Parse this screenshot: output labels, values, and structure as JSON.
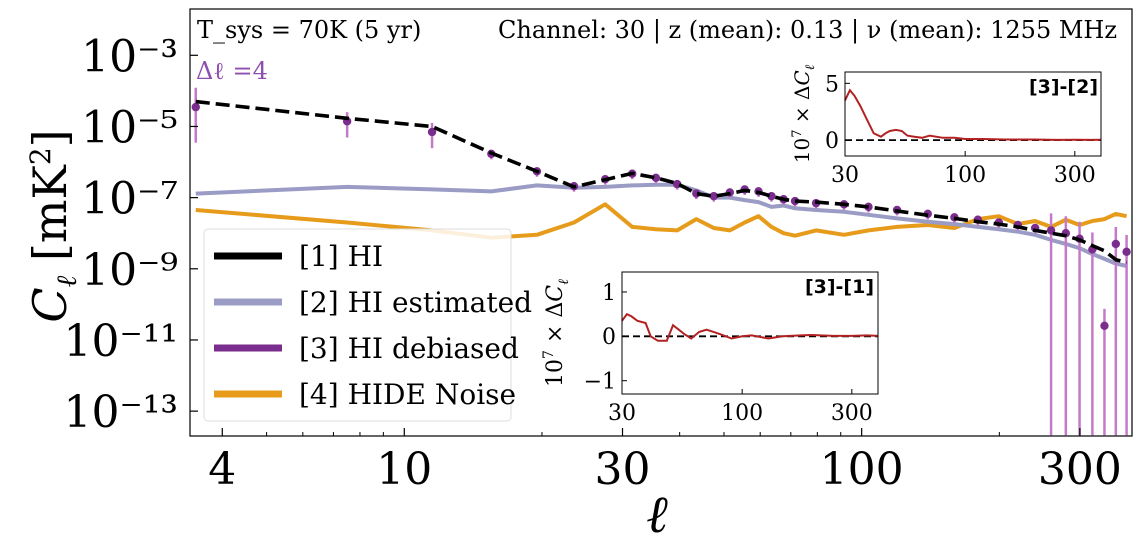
{
  "chart_data": [
    {
      "type": "line",
      "role": "main",
      "xscale": "log",
      "yscale": "log",
      "xlim": [
        3.4,
        390
      ],
      "ylim": [
        2e-14,
        0.02
      ],
      "xlabel": "ℓ",
      "ylabel": "C_ℓ [mK²]",
      "xticks": [
        {
          "value": 4,
          "label": "4"
        },
        {
          "value": 10,
          "label": "10"
        },
        {
          "value": 30,
          "label": "30"
        },
        {
          "value": 100,
          "label": "100"
        },
        {
          "value": 300,
          "label": "300"
        }
      ],
      "yticks": [
        {
          "value": 0.001,
          "label": "10⁻³"
        },
        {
          "value": 1e-05,
          "label": "10⁻⁵"
        },
        {
          "value": 1e-07,
          "label": "10⁻⁷"
        },
        {
          "value": 1e-09,
          "label": "10⁻⁹"
        },
        {
          "value": 1e-11,
          "label": "10⁻¹¹"
        },
        {
          "value": 1e-13,
          "label": "10⁻¹³"
        }
      ],
      "annotations": {
        "left": "T_sys = 70K (5 yr)",
        "right": "Channel: 30 | z (mean): 0.13 | ν (mean): 1255 MHz",
        "delta_ell": "Δℓ =4"
      },
      "legend": {
        "placement": "lower-left",
        "entries": [
          {
            "label": "[1] HI",
            "color": "#000000"
          },
          {
            "label": "[2] HI estimated",
            "color": "#9a9cc6"
          },
          {
            "label": "[3] HI debiased",
            "color": "#7b2d8e"
          },
          {
            "label": "[4] HIDE Noise",
            "color": "#e69b1a"
          }
        ]
      },
      "series": [
        {
          "name": "[1] HI",
          "color": "#000000",
          "style": "dashed",
          "x": [
            3.5,
            7.5,
            11.5,
            15.5,
            19.5,
            23.5,
            27.5,
            31.5,
            35.5,
            39.5,
            43.5,
            47.5,
            51.5,
            55.5,
            59.5,
            63.5,
            67.5,
            71.5,
            79.5,
            91.5,
            103.5,
            119.5,
            139.5,
            159.5,
            179.5,
            199.5,
            219.5,
            239.5,
            259.5,
            279.5,
            299.5,
            319.5,
            339.5,
            359.5,
            379.5
          ],
          "y": [
            5e-05,
            1.7e-05,
            1e-05,
            1.8e-06,
            5.5e-07,
            2e-07,
            3.2e-07,
            4.8e-07,
            3.6e-07,
            2.5e-07,
            1.3e-07,
            1.1e-07,
            1.3e-07,
            1.6e-07,
            1.4e-07,
            1.1e-07,
            9e-08,
            8e-08,
            7.5e-08,
            6.5e-08,
            5.5e-08,
            4.2e-08,
            3.2e-08,
            2.6e-08,
            2.1e-08,
            1.8e-08,
            1.5e-08,
            1.2e-08,
            1e-08,
            8.5e-09,
            6.5e-09,
            4.5e-09,
            3.2e-09,
            1.8e-09,
            1.5e-09
          ]
        },
        {
          "name": "[2] HI estimated",
          "color": "#9a9cc6",
          "style": "solid",
          "x": [
            3.5,
            7.5,
            11.5,
            15.5,
            19.5,
            23.5,
            27.5,
            31.5,
            35.5,
            39.5,
            43.5,
            47.5,
            51.5,
            55.5,
            59.5,
            63.5,
            67.5,
            71.5,
            79.5,
            91.5,
            103.5,
            119.5,
            139.5,
            159.5,
            179.5,
            199.5,
            219.5,
            239.5,
            259.5,
            279.5,
            299.5,
            319.5,
            339.5,
            359.5,
            379.5
          ],
          "y": [
            1.3e-07,
            2e-07,
            1.7e-07,
            1.5e-07,
            2.2e-07,
            1.9e-07,
            2e-07,
            2.2e-07,
            2.3e-07,
            2.3e-07,
            1.6e-07,
            1e-07,
            1e-07,
            8.5e-08,
            7.5e-08,
            5.5e-08,
            6e-08,
            5e-08,
            4.5e-08,
            4e-08,
            3.3e-08,
            2.6e-08,
            2.1e-08,
            1.8e-08,
            1.5e-08,
            1.3e-08,
            1.1e-08,
            9e-09,
            6.5e-09,
            5e-09,
            3.8e-09,
            2.6e-09,
            1.9e-09,
            1.4e-09,
            1.2e-09
          ]
        },
        {
          "name": "[3] HI debiased",
          "color": "#7b2d8e",
          "style": "markers",
          "x": [
            3.5,
            7.5,
            11.5,
            15.5,
            19.5,
            23.5,
            27.5,
            31.5,
            35.5,
            39.5,
            43.5,
            47.5,
            51.5,
            55.5,
            59.5,
            63.5,
            67.5,
            71.5,
            79.5,
            91.5,
            103.5,
            119.5,
            139.5,
            159.5,
            179.5,
            199.5,
            219.5,
            239.5,
            259.5,
            279.5,
            299.5,
            319.5,
            339.5,
            359.5,
            379.5
          ],
          "y": [
            3.5e-05,
            1.4e-05,
            7e-06,
            1.7e-06,
            5.5e-07,
            2.1e-07,
            3.3e-07,
            4.7e-07,
            3.6e-07,
            2.4e-07,
            1.3e-07,
            1.1e-07,
            1.4e-07,
            1.7e-07,
            1.5e-07,
            1.1e-07,
            9e-08,
            8e-08,
            7e-08,
            6.5e-08,
            5.5e-08,
            4.5e-08,
            3.5e-08,
            2.8e-08,
            2.4e-08,
            2e-08,
            1.7e-08,
            1.4e-08,
            1.2e-08,
            1e-08,
            7e-09,
            3.5e-09,
            2.5e-11,
            5e-09,
            3e-09
          ]
        },
        {
          "name": "[4] HIDE Noise",
          "color": "#e69b1a",
          "style": "solid",
          "x": [
            3.5,
            7.5,
            11.5,
            15.5,
            19.5,
            23.5,
            27.5,
            31.5,
            35.5,
            39.5,
            43.5,
            47.5,
            51.5,
            55.5,
            59.5,
            63.5,
            67.5,
            71.5,
            79.5,
            91.5,
            103.5,
            119.5,
            139.5,
            159.5,
            179.5,
            199.5,
            219.5,
            239.5,
            259.5,
            279.5,
            299.5,
            319.5,
            339.5,
            359.5,
            379.5
          ],
          "y": [
            4.5e-08,
            2e-08,
            1.2e-08,
            7.5e-09,
            9e-09,
            2e-08,
            6.5e-08,
            1.5e-08,
            1.3e-08,
            1.2e-08,
            2.5e-08,
            1.4e-08,
            1.2e-08,
            2e-08,
            3e-08,
            1.5e-08,
            1e-08,
            8.5e-09,
            1.2e-08,
            9e-09,
            1.2e-08,
            1.5e-08,
            1.7e-08,
            1.4e-08,
            2.5e-08,
            3e-08,
            1.8e-08,
            2.2e-08,
            1.5e-08,
            2.4e-08,
            1.7e-08,
            2.2e-08,
            2.5e-08,
            3.5e-08,
            3e-08
          ]
        }
      ]
    },
    {
      "type": "line",
      "role": "inset",
      "corner_label": "[3]-[2]",
      "xscale": "log",
      "xlim": [
        30,
        390
      ],
      "ylim": [
        -1.4,
        6.0
      ],
      "ylabel": "10⁷ × ΔC_ℓ",
      "xticks": [
        {
          "value": 30,
          "label": "30"
        },
        {
          "value": 100,
          "label": "100"
        },
        {
          "value": 300,
          "label": "300"
        }
      ],
      "yticks": [
        {
          "value": 0,
          "label": "0"
        },
        {
          "value": 5,
          "label": "5"
        }
      ],
      "series": [
        {
          "color": "#b22222",
          "style": "solid",
          "x": [
            30,
            31.5,
            33,
            35,
            37,
            40,
            43,
            45,
            47,
            50,
            53,
            56,
            60,
            65,
            70,
            80,
            90,
            100,
            120,
            150,
            200,
            250,
            300,
            350,
            390
          ],
          "y": [
            3.5,
            4.4,
            3.9,
            3.0,
            2.0,
            0.6,
            0.3,
            0.6,
            0.8,
            0.9,
            0.8,
            0.4,
            0.3,
            0.2,
            0.4,
            0.2,
            0.2,
            0.1,
            0.1,
            0.05,
            0.05,
            0.02,
            0.03,
            0.02,
            0.03
          ]
        }
      ],
      "reference_line": {
        "y": 0,
        "color": "#000000",
        "style": "dashed"
      }
    },
    {
      "type": "line",
      "role": "inset",
      "corner_label": "[3]-[1]",
      "xscale": "log",
      "xlim": [
        30,
        390
      ],
      "ylim": [
        -1.3,
        1.45
      ],
      "ylabel": "10⁷ × ΔC_ℓ",
      "xticks": [
        {
          "value": 30,
          "label": "30"
        },
        {
          "value": 100,
          "label": "100"
        },
        {
          "value": 300,
          "label": "300"
        }
      ],
      "yticks": [
        {
          "value": -1,
          "label": "−1"
        },
        {
          "value": 0,
          "label": "0"
        },
        {
          "value": 1,
          "label": "1"
        }
      ],
      "series": [
        {
          "color": "#b22222",
          "style": "solid",
          "x": [
            30,
            31.5,
            33,
            35,
            38,
            40,
            43,
            47,
            50,
            53,
            56,
            60,
            65,
            70,
            75,
            80,
            90,
            100,
            110,
            130,
            150,
            180,
            200,
            250,
            300,
            350,
            390
          ],
          "y": [
            0.35,
            0.5,
            0.45,
            0.35,
            0.3,
            0.0,
            -0.1,
            -0.1,
            0.25,
            0.15,
            0.05,
            -0.05,
            0.1,
            0.15,
            0.1,
            0.05,
            -0.05,
            0.0,
            0.02,
            -0.05,
            0.0,
            0.02,
            0.03,
            0.01,
            0.01,
            0.02,
            0.01
          ]
        }
      ],
      "reference_line": {
        "y": 0,
        "color": "#000000",
        "style": "dashed"
      }
    }
  ]
}
